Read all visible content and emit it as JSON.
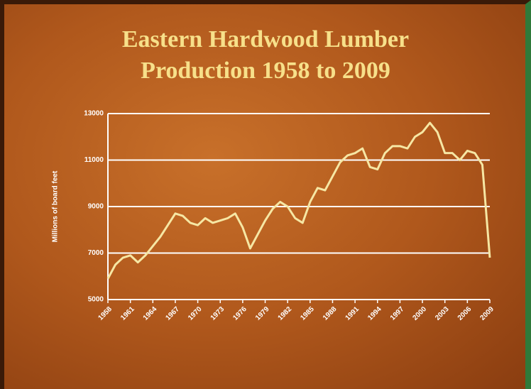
{
  "chart_data": {
    "type": "line",
    "title": "Eastern Hardwood Lumber Production 1958 to 2009",
    "y_label": "Millions of board feet",
    "x": [
      1958,
      1959,
      1960,
      1961,
      1962,
      1963,
      1964,
      1965,
      1966,
      1967,
      1968,
      1969,
      1970,
      1971,
      1972,
      1973,
      1974,
      1975,
      1976,
      1977,
      1978,
      1979,
      1980,
      1981,
      1982,
      1983,
      1984,
      1985,
      1986,
      1987,
      1988,
      1989,
      1990,
      1991,
      1992,
      1993,
      1994,
      1995,
      1996,
      1997,
      1998,
      1999,
      2000,
      2001,
      2002,
      2003,
      2004,
      2005,
      2006,
      2007,
      2008,
      2009
    ],
    "series": [
      {
        "name": "Production",
        "color": "#f6e7a4",
        "values": [
          5900,
          6500,
          6800,
          6900,
          6600,
          6900,
          7300,
          7700,
          8200,
          8700,
          8600,
          8300,
          8200,
          8500,
          8300,
          8400,
          8500,
          8700,
          8100,
          7200,
          7800,
          8400,
          8900,
          9200,
          9000,
          8500,
          8300,
          9200,
          9800,
          9700,
          10300,
          10900,
          11200,
          11300,
          11500,
          10700,
          10600,
          11300,
          11600,
          11600,
          11500,
          12000,
          12200,
          12600,
          12200,
          11300,
          11300,
          11000,
          11400,
          11300,
          10800,
          6800
        ]
      }
    ],
    "xlim": [
      1958,
      2009
    ],
    "xticks": [
      1958,
      1961,
      1964,
      1967,
      1970,
      1973,
      1976,
      1979,
      1982,
      1985,
      1988,
      1991,
      1994,
      1997,
      2000,
      2003,
      2006,
      2009
    ],
    "ylim": [
      5000,
      13000
    ],
    "yticks": [
      5000,
      7000,
      9000,
      11000,
      13000
    ],
    "grid": true
  }
}
